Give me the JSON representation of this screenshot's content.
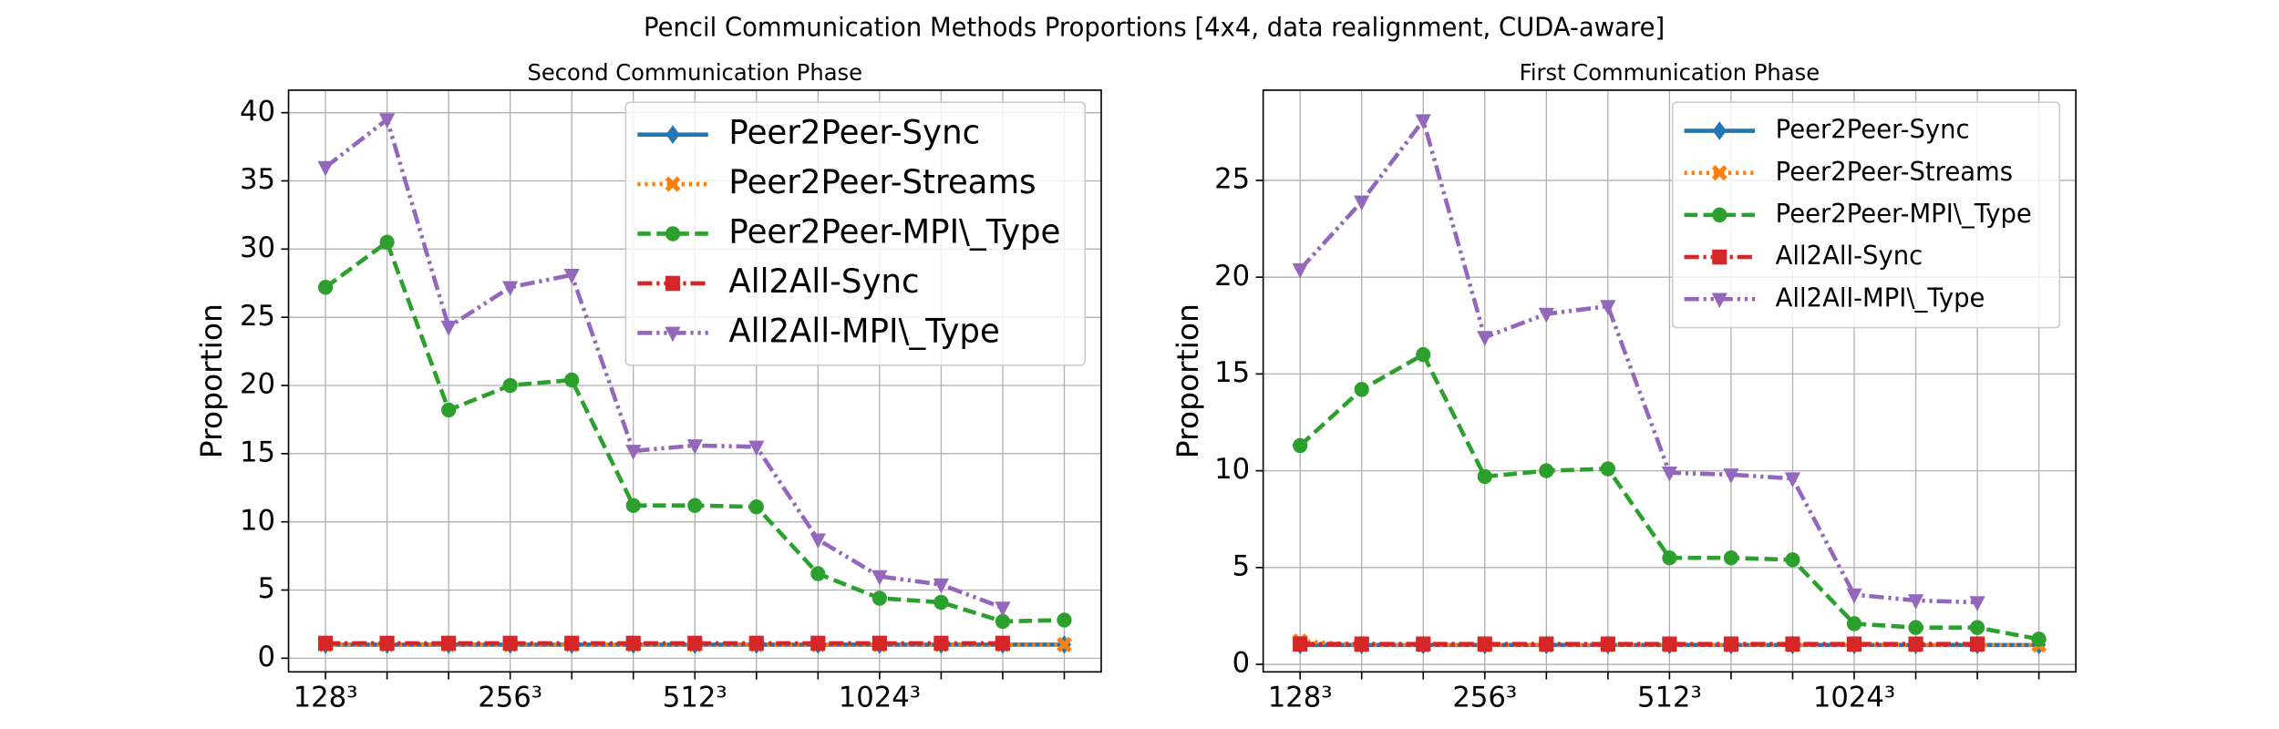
{
  "title": "Pencil Communication Methods Proportions [4x4, data realignment, CUDA-aware]",
  "chart_data": [
    {
      "type": "line",
      "title": "Second Communication Phase",
      "y_label": "Proportion",
      "categories": [
        "128³",
        null,
        null,
        "256³",
        null,
        null,
        "512³",
        null,
        null,
        "1024³",
        null,
        null,
        null
      ],
      "xlim": [
        -0.6,
        12.6
      ],
      "ylim": [
        -1.0,
        41.65
      ],
      "yticks": [
        0,
        5,
        10,
        15,
        20,
        25,
        30,
        35,
        40
      ],
      "grid": true,
      "legend": "upper right",
      "series": [
        {
          "name": "Peer2Peer-Sync",
          "color": "#1f77b4",
          "linestyle": "solid",
          "marker": "diamond",
          "values": [
            1.0,
            1.0,
            1.0,
            1.0,
            1.0,
            1.0,
            1.0,
            1.0,
            1.0,
            1.0,
            1.0,
            1.0,
            1.0
          ]
        },
        {
          "name": "Peer2Peer-Streams",
          "color": "#ff7f0e",
          "linestyle": "dotted",
          "marker": "x",
          "values": [
            1.0,
            1.0,
            1.0,
            1.0,
            1.0,
            1.0,
            1.0,
            1.0,
            1.0,
            1.0,
            1.0,
            1.0,
            1.0
          ]
        },
        {
          "name": "Peer2Peer-MPI\\_Type",
          "color": "#2ca02c",
          "linestyle": "dashed",
          "marker": "circle",
          "values": [
            27.2,
            30.5,
            18.2,
            20.0,
            20.4,
            11.2,
            11.2,
            11.1,
            6.2,
            4.4,
            4.1,
            2.7,
            2.8
          ]
        },
        {
          "name": "All2All-Sync",
          "color": "#d62728",
          "linestyle": "dashdot",
          "marker": "square",
          "values": [
            1.1,
            1.1,
            1.1,
            1.1,
            1.1,
            1.1,
            1.1,
            1.1,
            1.1,
            1.1,
            1.1,
            1.1,
            null
          ]
        },
        {
          "name": "All2All-MPI\\_Type",
          "color": "#9467bd",
          "linestyle": "dashdotdot",
          "marker": "triangle-down",
          "values": [
            36.0,
            39.5,
            24.3,
            27.2,
            28.1,
            15.2,
            15.6,
            15.5,
            8.7,
            6.0,
            5.4,
            3.7,
            null
          ]
        }
      ]
    },
    {
      "type": "line",
      "title": "First Communication Phase",
      "y_label": "Proportion",
      "categories": [
        "128³",
        null,
        null,
        "256³",
        null,
        null,
        "512³",
        null,
        null,
        "1024³",
        null,
        null,
        null
      ],
      "xlim": [
        -0.6,
        12.6
      ],
      "ylim": [
        -0.39,
        29.66
      ],
      "yticks": [
        0,
        5,
        10,
        15,
        20,
        25
      ],
      "grid": true,
      "legend": "upper right",
      "series": [
        {
          "name": "Peer2Peer-Sync",
          "color": "#1f77b4",
          "linestyle": "solid",
          "marker": "diamond",
          "values": [
            1.0,
            1.0,
            1.0,
            1.0,
            1.0,
            1.0,
            1.0,
            1.0,
            1.0,
            1.0,
            1.0,
            1.0,
            1.0
          ]
        },
        {
          "name": "Peer2Peer-Streams",
          "color": "#ff7f0e",
          "linestyle": "dotted",
          "marker": "x",
          "values": [
            1.2,
            1.0,
            1.0,
            1.0,
            1.0,
            1.0,
            1.0,
            1.0,
            1.0,
            1.0,
            1.0,
            1.0,
            1.0
          ]
        },
        {
          "name": "Peer2Peer-MPI\\_Type",
          "color": "#2ca02c",
          "linestyle": "dashed",
          "marker": "circle",
          "values": [
            11.3,
            14.2,
            16.0,
            9.7,
            10.0,
            10.1,
            5.5,
            5.5,
            5.4,
            2.1,
            1.9,
            1.9,
            1.3
          ]
        },
        {
          "name": "All2All-Sync",
          "color": "#d62728",
          "linestyle": "dashdot",
          "marker": "square",
          "values": [
            1.05,
            1.05,
            1.05,
            1.05,
            1.05,
            1.05,
            1.05,
            1.05,
            1.05,
            1.05,
            1.05,
            1.05,
            null
          ]
        },
        {
          "name": "All2All-MPI\\_Type",
          "color": "#9467bd",
          "linestyle": "dashdotdot",
          "marker": "triangle-down",
          "values": [
            20.4,
            23.9,
            28.1,
            16.9,
            18.1,
            18.5,
            9.9,
            9.8,
            9.6,
            3.6,
            3.3,
            3.2,
            null
          ]
        }
      ]
    }
  ]
}
